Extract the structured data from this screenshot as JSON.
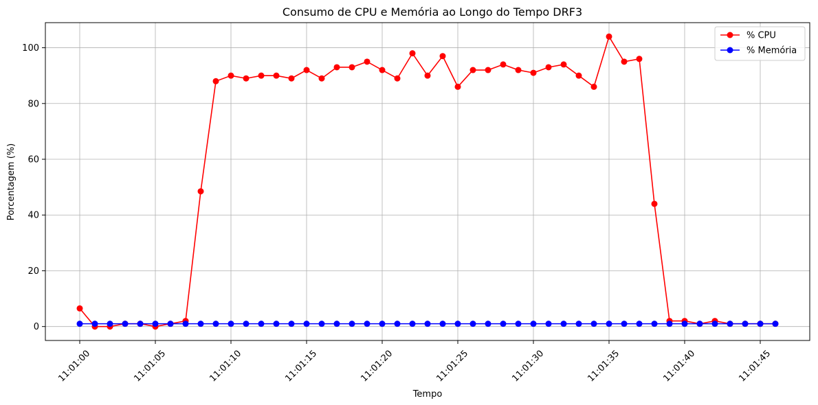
{
  "chart_data": {
    "type": "line",
    "title": "Consumo de CPU e Memória ao Longo do Tempo DRF3",
    "xlabel": "Tempo",
    "ylabel": "Porcentagem (%)",
    "xlim": [
      "11:01:00",
      "11:01:46"
    ],
    "ylim": [
      -5,
      109
    ],
    "grid": true,
    "legend_position": "top-right",
    "x_ticks": [
      "11:01:00",
      "11:01:05",
      "11:01:10",
      "11:01:15",
      "11:01:20",
      "11:01:25",
      "11:01:30",
      "11:01:35",
      "11:01:40",
      "11:01:45"
    ],
    "y_ticks": [
      0,
      20,
      40,
      60,
      80,
      100
    ],
    "x": [
      "11:01:00",
      "11:01:01",
      "11:01:02",
      "11:01:03",
      "11:01:04",
      "11:01:05",
      "11:01:06",
      "11:01:07",
      "11:01:08",
      "11:01:09",
      "11:01:10",
      "11:01:11",
      "11:01:12",
      "11:01:13",
      "11:01:14",
      "11:01:15",
      "11:01:16",
      "11:01:17",
      "11:01:18",
      "11:01:19",
      "11:01:20",
      "11:01:21",
      "11:01:22",
      "11:01:23",
      "11:01:24",
      "11:01:25",
      "11:01:26",
      "11:01:27",
      "11:01:28",
      "11:01:29",
      "11:01:30",
      "11:01:31",
      "11:01:32",
      "11:01:33",
      "11:01:34",
      "11:01:35",
      "11:01:36",
      "11:01:37",
      "11:01:38",
      "11:01:39",
      "11:01:40",
      "11:01:41",
      "11:01:42",
      "11:01:43",
      "11:01:44",
      "11:01:45",
      "11:01:46"
    ],
    "series": [
      {
        "name": "% CPU",
        "color": "#ff0000",
        "values": [
          6.5,
          0,
          0,
          1,
          1,
          0,
          1,
          2,
          48.5,
          88,
          90,
          89,
          90,
          90,
          89,
          92,
          89,
          93,
          93,
          95,
          92,
          89,
          98,
          90,
          97,
          86,
          92,
          92,
          94,
          92,
          91,
          93,
          94,
          90,
          86,
          104,
          95,
          96,
          44,
          2,
          2,
          1,
          2,
          1,
          1,
          1,
          1
        ]
      },
      {
        "name": "% Memória",
        "color": "#0000ff",
        "values": [
          1,
          1,
          1,
          1,
          1,
          1,
          1,
          1,
          1,
          1,
          1,
          1,
          1,
          1,
          1,
          1,
          1,
          1,
          1,
          1,
          1,
          1,
          1,
          1,
          1,
          1,
          1,
          1,
          1,
          1,
          1,
          1,
          1,
          1,
          1,
          1,
          1,
          1,
          1,
          1,
          1,
          1,
          1,
          1,
          1,
          1,
          1
        ]
      }
    ]
  }
}
